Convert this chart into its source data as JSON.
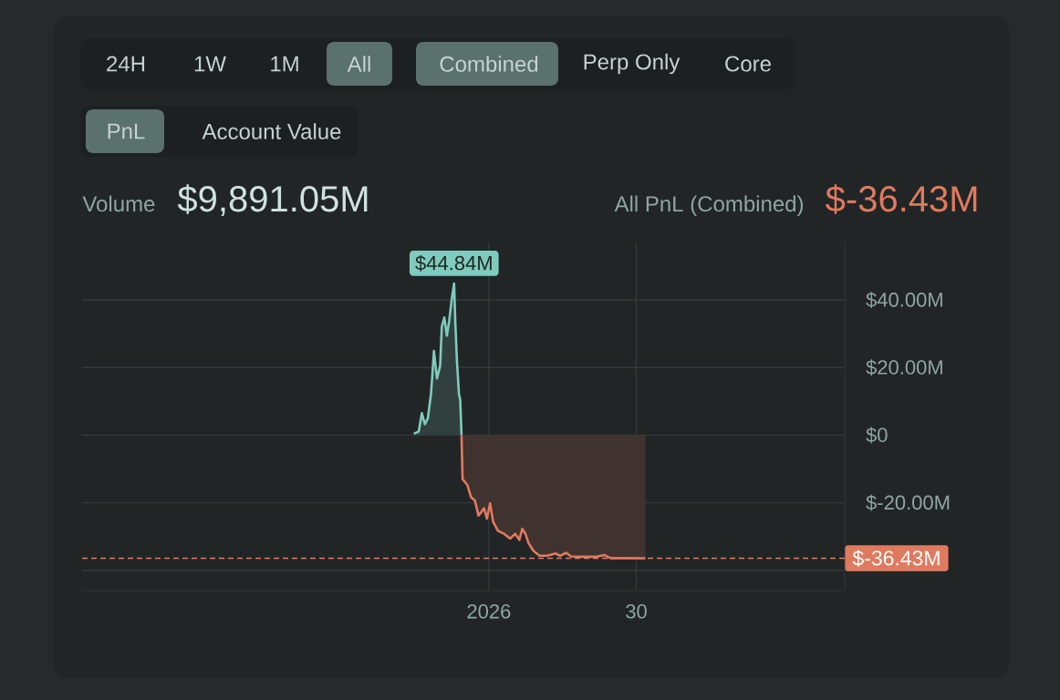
{
  "chart_data": {
    "type": "area",
    "annotations": [
      "24H",
      "1W",
      "1M",
      "All",
      "Combined",
      "Perp Only",
      "Core",
      "PnL",
      "Account Value",
      "Volume",
      "$9,891.05M",
      "All PnL (Combined)",
      "$-36.43M",
      {
        "text": "$44.84M",
        "x": "2025-12-25T04:00",
        "y": 44.84
      }
    ],
    "series": [
      {
        "color": "#7fcbbd",
        "x": [
          "2025-12-17T06:00",
          "2025-12-18T05:00",
          "2025-12-18T20:00",
          "2025-12-19T10:00",
          "2025-12-20T00:00",
          "2025-12-20T15:00",
          "2025-12-21T05:00",
          "2025-12-21T19:00",
          "2025-12-22T10:00",
          "2025-12-22T18:00",
          "2025-12-23T06:00",
          "2025-12-23T18:00",
          "2025-12-24T05:00",
          "2025-12-24T17:00",
          "2025-12-25T04:00",
          "2025-12-25T10:00",
          "2025-12-25T18:00",
          "2025-12-26T03:00",
          "2025-12-26T09:00",
          "2025-12-26T15:00"
        ],
        "values": [
          0.4,
          1.1,
          6.5,
          3.2,
          5.0,
          12.2,
          24.9,
          16.8,
          20.4,
          32.1,
          34.8,
          29.4,
          33.9,
          40.2,
          44.84,
          33.0,
          21.3,
          12.2,
          10.4,
          0
        ]
      },
      {
        "color": "#e07a5f",
        "x": [
          "2025-12-26T15:00",
          "2025-12-26T20:00",
          "2025-12-27T19:00",
          "2025-12-28T12:00",
          "2025-12-29T06:00",
          "2025-12-29T23:00",
          "2025-12-30T11:00",
          "2025-12-31T01:00",
          "2025-12-31T15:00",
          "2026-01-01T06:00",
          "2026-01-01T20:00",
          "2026-01-02T19:00",
          "2026-01-04T00:00",
          "2026-01-05T05:00",
          "2026-01-06T04:00",
          "2026-01-07T00:00",
          "2026-01-07T14:00",
          "2026-01-08T05:00",
          "2026-01-08T19:00",
          "2026-01-09T18:00",
          "2026-01-10T23:00",
          "2026-01-12T09:00",
          "2026-01-14T04:00",
          "2026-01-15T00:00",
          "2026-01-16T05:00",
          "2026-01-17T04:00",
          "2026-01-19T14:00",
          "2026-01-21T23:00",
          "2026-01-23T18:00",
          "2026-01-24T23:00",
          "2026-01-27T23:00",
          "2026-01-31T19:00"
        ],
        "values": [
          0,
          -13.0,
          -14.8,
          -18.4,
          -19.3,
          -23.8,
          -22.9,
          -21.6,
          -24.7,
          -20.2,
          -25.6,
          -28.3,
          -29.2,
          -30.6,
          -29.2,
          -31.0,
          -27.7,
          -29.2,
          -31.9,
          -34.2,
          -35.7,
          -35.7,
          -35.0,
          -35.7,
          -34.8,
          -35.9,
          -36.0,
          -36.0,
          -35.5,
          -36.4,
          -36.4,
          -36.43
        ]
      }
    ],
    "xlim": [
      "2025-10-13",
      "2026-03-12"
    ],
    "xticks": [
      {
        "value": "2026-01-01",
        "label": "2026"
      },
      {
        "value": "2026-01-30",
        "label": "30"
      }
    ],
    "ylim": [
      -46,
      57
    ],
    "yticks": [
      {
        "value": 40,
        "label": "$40.00M"
      },
      {
        "value": 20,
        "label": "$20.00M"
      },
      {
        "value": 0,
        "label": "$0"
      },
      {
        "value": -20,
        "label": "$-20.00M"
      },
      {
        "value": -40,
        "label": null
      }
    ],
    "ref_lines": [
      {
        "axis": "y",
        "value": -36.43,
        "label": "$-36.43M",
        "color": "#e07a5f",
        "line_style": "dashed"
      }
    ],
    "grid": true
  }
}
